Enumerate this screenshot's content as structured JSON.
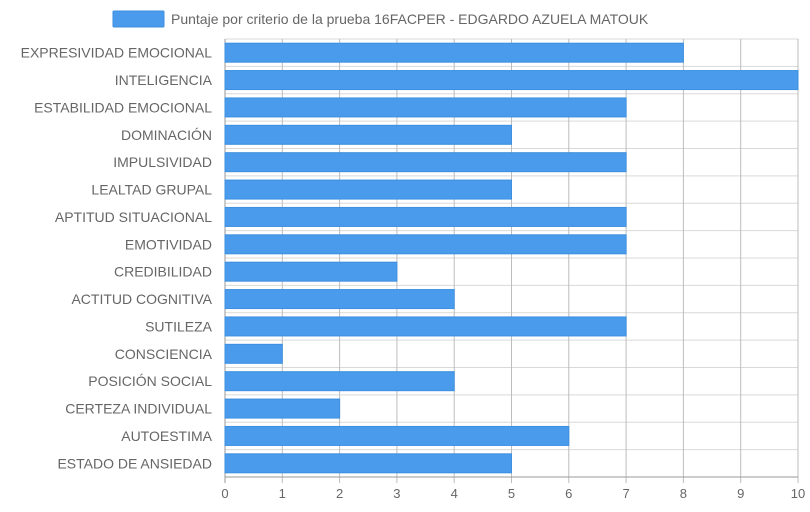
{
  "chart_data": {
    "type": "bar",
    "orientation": "horizontal",
    "legend": {
      "label": "Puntaje por criterio de la prueba 16FACPER - EDGARDO AZUELA MATOUK",
      "placement": "top-center"
    },
    "categories": [
      "EXPRESIVIDAD EMOCIONAL",
      "INTELIGENCIA",
      "ESTABILIDAD EMOCIONAL",
      "DOMINACIÓN",
      "IMPULSIVIDAD",
      "LEALTAD GRUPAL",
      "APTITUD SITUACIONAL",
      "EMOTIVIDAD",
      "CREDIBILIDAD",
      "ACTITUD COGNITIVA",
      "SUTILEZA",
      "CONSCIENCIA",
      "POSICIÓN SOCIAL",
      "CERTEZA INDIVIDUAL",
      "AUTOESTIMA",
      "ESTADO DE ANSIEDAD"
    ],
    "values": [
      8,
      10,
      7,
      5,
      7,
      5,
      7,
      7,
      3,
      4,
      7,
      1,
      4,
      2,
      6,
      5
    ],
    "xlim": [
      0,
      10
    ],
    "xticks": [
      "0",
      "1",
      "2",
      "3",
      "4",
      "5",
      "6",
      "7",
      "8",
      "9",
      "10"
    ],
    "grid": true,
    "colors": {
      "bar_fill": "#4a9beb",
      "bar_border": "#3d8fe0",
      "legend_box": "#4a9beb"
    }
  }
}
